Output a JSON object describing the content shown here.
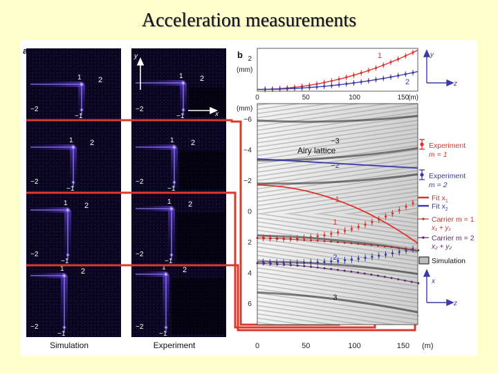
{
  "slide": {
    "title": "Acceleration measurements"
  },
  "figure": {
    "panel_a_label": "a",
    "panel_b_label": "b",
    "col_labels": [
      "Simulation",
      "Experiment"
    ],
    "order_labels": [
      "1",
      "2",
      "−2",
      "−1"
    ],
    "axis_y": "y",
    "axis_x": "x",
    "axis_z": "z",
    "top_plot_unit": "(mm)",
    "top_plot_ytick": "2",
    "top_plot_xticks": [
      "0",
      "50",
      "100",
      "150"
    ],
    "top_plot_xunit": "(m)",
    "top_plot_series_labels": [
      "1",
      "2"
    ],
    "main_plot_unit": "(mm)",
    "main_plot_yticks": [
      "−6",
      "−4",
      "−2",
      "0",
      "2",
      "4",
      "6"
    ],
    "main_plot_xticks": [
      "0",
      "50",
      "100",
      "150"
    ],
    "main_plot_xunit": "(m)",
    "main_plot_orders": [
      "−3",
      "−2",
      "−1",
      "1",
      "2",
      "3"
    ],
    "airy_label": "Airy lattice",
    "legend": {
      "exp1_a": "Experiment",
      "exp1_b": "m = 1",
      "exp2_a": "Experiment",
      "exp2_b": "m = 2",
      "fit1": "Fit x",
      "fit1_sub": "1",
      "fit2": "Fit x",
      "fit2_sub": "2",
      "carrier1": "Carrier m = 1",
      "carrier1_eq": "x₁ + y₁",
      "carrier2": "Carrier m = 2",
      "carrier2_eq": "x₂ + y₂",
      "simulation": "Simulation"
    },
    "colors": {
      "red": "#e0302a",
      "blue": "#3a3aa8",
      "panel_bg": "#0a0620",
      "highlight": "#d93a2b"
    }
  }
}
